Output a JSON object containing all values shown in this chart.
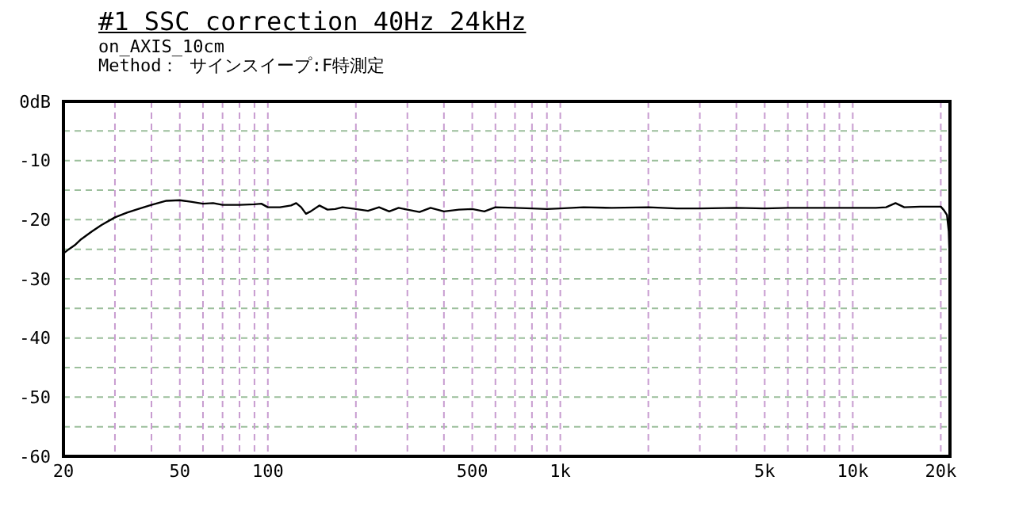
{
  "chart_data": {
    "type": "line",
    "title": "#1 SSC correction 40Hz 24kHz",
    "subtitle": "on_AXIS_10cm",
    "annotations": [
      "Method： サインスイープ:F特測定"
    ],
    "series": [
      {
        "color": "#000000",
        "x": [
          20,
          21,
          22,
          23,
          25,
          27,
          30,
          33,
          36,
          40,
          45,
          50,
          55,
          60,
          65,
          70,
          80,
          90,
          95,
          100,
          110,
          120,
          125,
          130,
          135,
          140,
          150,
          160,
          170,
          180,
          200,
          220,
          240,
          260,
          280,
          300,
          330,
          360,
          400,
          450,
          500,
          550,
          600,
          700,
          800,
          900,
          1000,
          1200,
          1500,
          2000,
          2500,
          3000,
          4000,
          5000,
          6000,
          8000,
          10000,
          12000,
          13000,
          14000,
          15000,
          17000,
          20000,
          20500,
          21000,
          21300,
          21500
        ],
        "values": [
          -25.7,
          -24.9,
          -24.2,
          -23.3,
          -22.0,
          -20.9,
          -19.6,
          -18.8,
          -18.2,
          -17.5,
          -16.8,
          -16.7,
          -17.0,
          -17.3,
          -17.2,
          -17.5,
          -17.5,
          -17.4,
          -17.3,
          -17.9,
          -17.9,
          -17.6,
          -17.2,
          -17.9,
          -19.0,
          -18.6,
          -17.6,
          -18.3,
          -18.2,
          -17.9,
          -18.2,
          -18.5,
          -17.9,
          -18.6,
          -18.0,
          -18.3,
          -18.7,
          -18.0,
          -18.6,
          -18.3,
          -18.2,
          -18.6,
          -17.9,
          -18.0,
          -18.1,
          -18.2,
          -18.1,
          -17.9,
          -18.0,
          -17.9,
          -18.1,
          -18.1,
          -18.0,
          -18.1,
          -18.0,
          -18.0,
          -18.0,
          -18.0,
          -17.9,
          -17.2,
          -17.9,
          -17.8,
          -17.8,
          -18.4,
          -19.2,
          -22.0,
          -28.4
        ]
      }
    ],
    "xlim": [
      20,
      21500
    ],
    "ylim": [
      -60,
      0
    ],
    "xticks": [
      20,
      {
        "value": 30,
        "label": null
      },
      {
        "value": 40,
        "label": null
      },
      50,
      {
        "value": 60,
        "label": null
      },
      {
        "value": 70,
        "label": null
      },
      {
        "value": 80,
        "label": null
      },
      {
        "value": 90,
        "label": null
      },
      100,
      {
        "value": 200,
        "label": null
      },
      {
        "value": 300,
        "label": null
      },
      {
        "value": 400,
        "label": null
      },
      500,
      {
        "value": 600,
        "label": null
      },
      {
        "value": 700,
        "label": null
      },
      {
        "value": 800,
        "label": null
      },
      {
        "value": 900,
        "label": null
      },
      {
        "value": 1000,
        "label": "1k"
      },
      {
        "value": 2000,
        "label": null
      },
      {
        "value": 3000,
        "label": null
      },
      {
        "value": 4000,
        "label": null
      },
      {
        "value": 5000,
        "label": "5k"
      },
      {
        "value": 6000,
        "label": null
      },
      {
        "value": 7000,
        "label": null
      },
      {
        "value": 8000,
        "label": null
      },
      {
        "value": 9000,
        "label": null
      },
      {
        "value": 10000,
        "label": "10k"
      },
      {
        "value": 20000,
        "label": "20k"
      }
    ],
    "yticks": [
      -60,
      {
        "value": -55,
        "label": null
      },
      -50,
      {
        "value": -45,
        "label": null
      },
      -40,
      {
        "value": -35,
        "label": null
      },
      -30,
      {
        "value": -25,
        "label": null
      },
      -20,
      {
        "value": -15,
        "label": null
      },
      -10,
      {
        "value": -5,
        "label": null
      },
      {
        "value": 0,
        "label": "0dB"
      }
    ],
    "log": "x",
    "grid": true,
    "marker": "none",
    "line_style": "solid"
  }
}
